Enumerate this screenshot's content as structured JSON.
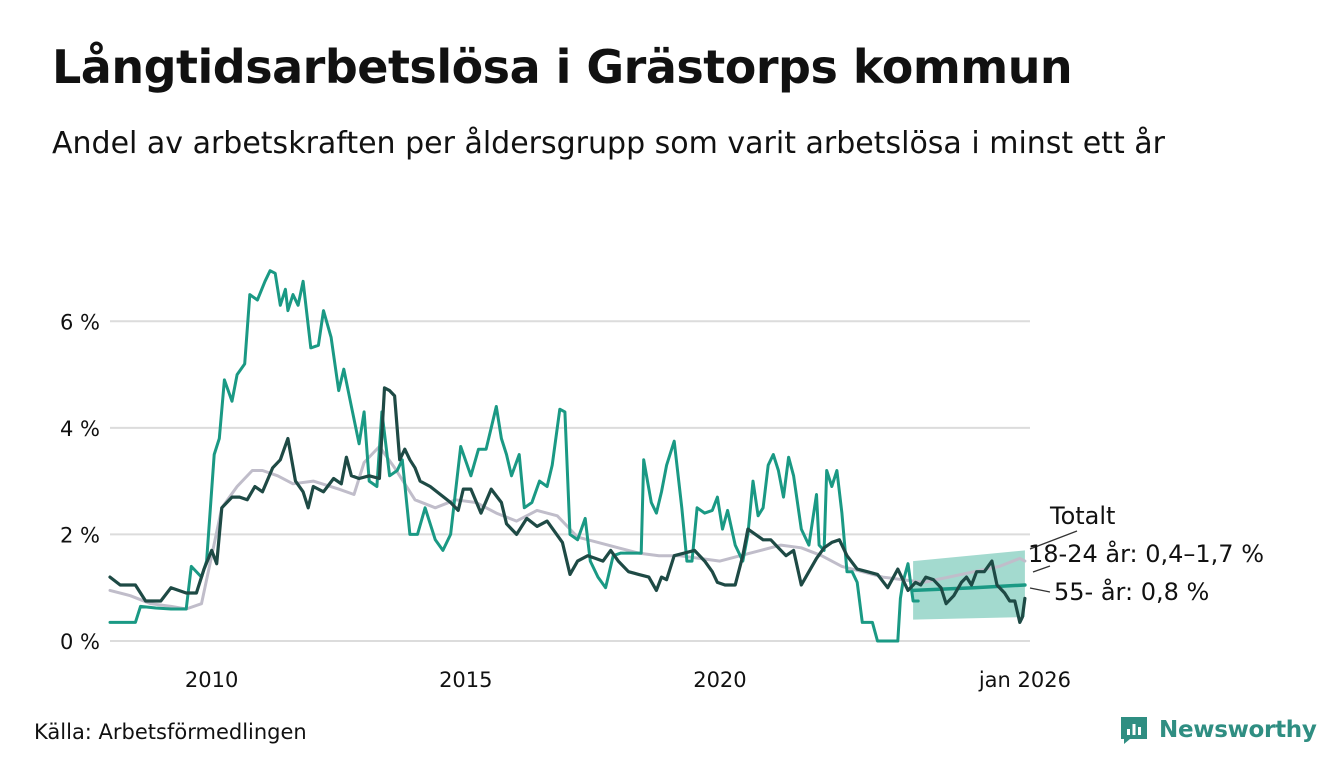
{
  "title": "Långtidsarbetslösa i Grästorps kommun",
  "subtitle": "Andel av arbetskraften per åldersgrupp som varit arbetslösa i minst ett år",
  "source": "Källa: Arbetsförmedlingen",
  "brand": "Newsworthy",
  "colors": {
    "youth": "#1a9984",
    "senior": "#1e4a45",
    "total": "#c0bdca",
    "band": "#93d3c7",
    "grid": "#dcdcdc",
    "brand": "#2f8e82"
  },
  "chart_data": {
    "type": "line",
    "xlim": [
      2008,
      2026.1
    ],
    "ylim": [
      0,
      7
    ],
    "y_ticks": [
      0,
      2,
      4,
      6
    ],
    "y_tick_labels": [
      "0 %",
      "2 %",
      "4 %",
      "6 %"
    ],
    "x_ticks": [
      2010,
      2015,
      2020,
      2026
    ],
    "x_tick_labels": [
      "2010",
      "2015",
      "2020",
      "jan 2026"
    ],
    "series": [
      {
        "name": "Totalt",
        "label": "Totalt",
        "color_key": "total",
        "points": [
          [
            2008.0,
            0.95
          ],
          [
            2008.4,
            0.85
          ],
          [
            2008.8,
            0.7
          ],
          [
            2009.2,
            0.65
          ],
          [
            2009.5,
            0.6
          ],
          [
            2009.8,
            0.7
          ],
          [
            2010.0,
            1.6
          ],
          [
            2010.2,
            2.5
          ],
          [
            2010.5,
            2.9
          ],
          [
            2010.8,
            3.2
          ],
          [
            2011.0,
            3.2
          ],
          [
            2011.3,
            3.1
          ],
          [
            2011.6,
            2.95
          ],
          [
            2012.0,
            3.0
          ],
          [
            2012.5,
            2.85
          ],
          [
            2012.8,
            2.75
          ],
          [
            2013.0,
            3.35
          ],
          [
            2013.3,
            3.65
          ],
          [
            2013.6,
            3.25
          ],
          [
            2014.0,
            2.65
          ],
          [
            2014.4,
            2.5
          ],
          [
            2014.8,
            2.65
          ],
          [
            2015.2,
            2.6
          ],
          [
            2015.6,
            2.4
          ],
          [
            2016.0,
            2.25
          ],
          [
            2016.4,
            2.45
          ],
          [
            2016.8,
            2.35
          ],
          [
            2017.2,
            1.95
          ],
          [
            2017.6,
            1.85
          ],
          [
            2018.0,
            1.75
          ],
          [
            2018.4,
            1.65
          ],
          [
            2018.8,
            1.6
          ],
          [
            2019.2,
            1.6
          ],
          [
            2019.6,
            1.55
          ],
          [
            2020.0,
            1.5
          ],
          [
            2020.4,
            1.6
          ],
          [
            2020.8,
            1.7
          ],
          [
            2021.2,
            1.8
          ],
          [
            2021.6,
            1.75
          ],
          [
            2022.0,
            1.6
          ],
          [
            2022.4,
            1.4
          ],
          [
            2022.8,
            1.3
          ],
          [
            2023.2,
            1.2
          ],
          [
            2023.6,
            1.15
          ],
          [
            2024.0,
            1.1
          ],
          [
            2024.5,
            1.2
          ],
          [
            2025.0,
            1.3
          ],
          [
            2025.5,
            1.4
          ],
          [
            2025.9,
            1.55
          ],
          [
            2026.0,
            1.5
          ]
        ]
      },
      {
        "name": "18-24 år",
        "label": "18-24 år: 0,4–1,7 %",
        "color_key": "youth",
        "points": [
          [
            2008.0,
            0.35
          ],
          [
            2008.3,
            0.35
          ],
          [
            2008.5,
            0.35
          ],
          [
            2008.6,
            0.65
          ],
          [
            2008.9,
            0.62
          ],
          [
            2009.2,
            0.6
          ],
          [
            2009.5,
            0.6
          ],
          [
            2009.6,
            1.4
          ],
          [
            2009.8,
            1.2
          ],
          [
            2009.9,
            1.5
          ],
          [
            2010.05,
            3.5
          ],
          [
            2010.15,
            3.8
          ],
          [
            2010.25,
            4.9
          ],
          [
            2010.4,
            4.5
          ],
          [
            2010.5,
            5.0
          ],
          [
            2010.65,
            5.2
          ],
          [
            2010.75,
            6.5
          ],
          [
            2010.9,
            6.4
          ],
          [
            2011.05,
            6.75
          ],
          [
            2011.15,
            6.95
          ],
          [
            2011.25,
            6.9
          ],
          [
            2011.35,
            6.3
          ],
          [
            2011.45,
            6.6
          ],
          [
            2011.5,
            6.2
          ],
          [
            2011.6,
            6.5
          ],
          [
            2011.7,
            6.3
          ],
          [
            2011.8,
            6.75
          ],
          [
            2011.95,
            5.5
          ],
          [
            2012.1,
            5.55
          ],
          [
            2012.2,
            6.2
          ],
          [
            2012.35,
            5.7
          ],
          [
            2012.5,
            4.7
          ],
          [
            2012.6,
            5.1
          ],
          [
            2012.75,
            4.4
          ],
          [
            2012.9,
            3.7
          ],
          [
            2013.0,
            4.3
          ],
          [
            2013.1,
            3.0
          ],
          [
            2013.25,
            2.9
          ],
          [
            2013.35,
            4.3
          ],
          [
            2013.5,
            3.1
          ],
          [
            2013.65,
            3.2
          ],
          [
            2013.75,
            3.4
          ],
          [
            2013.9,
            2.0
          ],
          [
            2014.05,
            2.0
          ],
          [
            2014.2,
            2.5
          ],
          [
            2014.4,
            1.9
          ],
          [
            2014.55,
            1.7
          ],
          [
            2014.7,
            2.0
          ],
          [
            2014.9,
            3.65
          ],
          [
            2015.1,
            3.1
          ],
          [
            2015.25,
            3.6
          ],
          [
            2015.4,
            3.6
          ],
          [
            2015.5,
            4.0
          ],
          [
            2015.6,
            4.4
          ],
          [
            2015.7,
            3.8
          ],
          [
            2015.8,
            3.5
          ],
          [
            2015.9,
            3.1
          ],
          [
            2016.05,
            3.5
          ],
          [
            2016.15,
            2.5
          ],
          [
            2016.3,
            2.6
          ],
          [
            2016.45,
            3.0
          ],
          [
            2016.6,
            2.9
          ],
          [
            2016.7,
            3.3
          ],
          [
            2016.85,
            4.35
          ],
          [
            2016.95,
            4.3
          ],
          [
            2017.05,
            2.0
          ],
          [
            2017.2,
            1.9
          ],
          [
            2017.35,
            2.3
          ],
          [
            2017.45,
            1.5
          ],
          [
            2017.6,
            1.2
          ],
          [
            2017.75,
            1.0
          ],
          [
            2017.9,
            1.6
          ],
          [
            2018.05,
            1.65
          ],
          [
            2018.25,
            1.65
          ],
          [
            2018.45,
            1.65
          ],
          [
            2018.5,
            3.4
          ],
          [
            2018.65,
            2.6
          ],
          [
            2018.75,
            2.4
          ],
          [
            2018.85,
            2.8
          ],
          [
            2018.95,
            3.3
          ],
          [
            2019.1,
            3.75
          ],
          [
            2019.25,
            2.5
          ],
          [
            2019.35,
            1.5
          ],
          [
            2019.45,
            1.5
          ],
          [
            2019.55,
            2.5
          ],
          [
            2019.7,
            2.4
          ],
          [
            2019.85,
            2.45
          ],
          [
            2019.95,
            2.7
          ],
          [
            2020.05,
            2.1
          ],
          [
            2020.15,
            2.45
          ],
          [
            2020.3,
            1.8
          ],
          [
            2020.45,
            1.5
          ],
          [
            2020.55,
            2.0
          ],
          [
            2020.65,
            3.0
          ],
          [
            2020.75,
            2.35
          ],
          [
            2020.85,
            2.5
          ],
          [
            2020.95,
            3.3
          ],
          [
            2021.05,
            3.5
          ],
          [
            2021.15,
            3.2
          ],
          [
            2021.25,
            2.7
          ],
          [
            2021.35,
            3.45
          ],
          [
            2021.45,
            3.1
          ],
          [
            2021.6,
            2.1
          ],
          [
            2021.75,
            1.8
          ],
          [
            2021.9,
            2.75
          ],
          [
            2021.95,
            1.8
          ],
          [
            2022.05,
            1.7
          ],
          [
            2022.1,
            3.2
          ],
          [
            2022.2,
            2.9
          ],
          [
            2022.3,
            3.2
          ],
          [
            2022.4,
            2.4
          ],
          [
            2022.5,
            1.3
          ],
          [
            2022.6,
            1.3
          ],
          [
            2022.7,
            1.1
          ],
          [
            2022.8,
            0.35
          ],
          [
            2022.9,
            0.35
          ],
          [
            2023.0,
            0.35
          ],
          [
            2023.1,
            0.0
          ],
          [
            2023.3,
            0.0
          ],
          [
            2023.5,
            0.0
          ],
          [
            2023.55,
            0.8
          ],
          [
            2023.6,
            1.1
          ],
          [
            2023.7,
            1.45
          ],
          [
            2023.8,
            0.75
          ],
          [
            2023.9,
            0.75
          ]
        ]
      },
      {
        "name": "55- år",
        "label": "55- år: 0,8 %",
        "color_key": "senior",
        "points": [
          [
            2008.0,
            1.2
          ],
          [
            2008.2,
            1.05
          ],
          [
            2008.5,
            1.05
          ],
          [
            2008.7,
            0.75
          ],
          [
            2009.0,
            0.75
          ],
          [
            2009.2,
            1.0
          ],
          [
            2009.5,
            0.9
          ],
          [
            2009.7,
            0.9
          ],
          [
            2009.85,
            1.35
          ],
          [
            2010.0,
            1.7
          ],
          [
            2010.1,
            1.45
          ],
          [
            2010.2,
            2.5
          ],
          [
            2010.4,
            2.7
          ],
          [
            2010.55,
            2.7
          ],
          [
            2010.7,
            2.65
          ],
          [
            2010.85,
            2.9
          ],
          [
            2011.0,
            2.8
          ],
          [
            2011.2,
            3.25
          ],
          [
            2011.35,
            3.4
          ],
          [
            2011.5,
            3.8
          ],
          [
            2011.65,
            3.0
          ],
          [
            2011.8,
            2.8
          ],
          [
            2011.9,
            2.5
          ],
          [
            2012.0,
            2.9
          ],
          [
            2012.2,
            2.8
          ],
          [
            2012.4,
            3.05
          ],
          [
            2012.55,
            2.95
          ],
          [
            2012.65,
            3.45
          ],
          [
            2012.75,
            3.1
          ],
          [
            2012.9,
            3.05
          ],
          [
            2013.1,
            3.1
          ],
          [
            2013.3,
            3.05
          ],
          [
            2013.4,
            4.75
          ],
          [
            2013.5,
            4.7
          ],
          [
            2013.6,
            4.6
          ],
          [
            2013.7,
            3.4
          ],
          [
            2013.8,
            3.6
          ],
          [
            2013.9,
            3.4
          ],
          [
            2014.0,
            3.25
          ],
          [
            2014.1,
            3.0
          ],
          [
            2014.3,
            2.9
          ],
          [
            2014.5,
            2.75
          ],
          [
            2014.7,
            2.6
          ],
          [
            2014.85,
            2.45
          ],
          [
            2014.95,
            2.85
          ],
          [
            2015.1,
            2.85
          ],
          [
            2015.3,
            2.4
          ],
          [
            2015.5,
            2.85
          ],
          [
            2015.7,
            2.6
          ],
          [
            2015.8,
            2.2
          ],
          [
            2016.0,
            2.0
          ],
          [
            2016.2,
            2.3
          ],
          [
            2016.4,
            2.15
          ],
          [
            2016.6,
            2.25
          ],
          [
            2016.75,
            2.05
          ],
          [
            2016.9,
            1.85
          ],
          [
            2017.05,
            1.25
          ],
          [
            2017.2,
            1.5
          ],
          [
            2017.4,
            1.6
          ],
          [
            2017.55,
            1.55
          ],
          [
            2017.7,
            1.5
          ],
          [
            2017.85,
            1.7
          ],
          [
            2018.0,
            1.5
          ],
          [
            2018.2,
            1.3
          ],
          [
            2018.4,
            1.25
          ],
          [
            2018.6,
            1.2
          ],
          [
            2018.75,
            0.95
          ],
          [
            2018.85,
            1.2
          ],
          [
            2018.95,
            1.15
          ],
          [
            2019.1,
            1.6
          ],
          [
            2019.3,
            1.65
          ],
          [
            2019.5,
            1.7
          ],
          [
            2019.7,
            1.5
          ],
          [
            2019.85,
            1.3
          ],
          [
            2019.95,
            1.1
          ],
          [
            2020.1,
            1.05
          ],
          [
            2020.3,
            1.05
          ],
          [
            2020.45,
            1.6
          ],
          [
            2020.55,
            2.1
          ],
          [
            2020.7,
            2.0
          ],
          [
            2020.85,
            1.9
          ],
          [
            2021.0,
            1.9
          ],
          [
            2021.15,
            1.75
          ],
          [
            2021.3,
            1.6
          ],
          [
            2021.45,
            1.7
          ],
          [
            2021.6,
            1.05
          ],
          [
            2021.75,
            1.3
          ],
          [
            2021.9,
            1.55
          ],
          [
            2022.05,
            1.75
          ],
          [
            2022.2,
            1.85
          ],
          [
            2022.35,
            1.9
          ],
          [
            2022.5,
            1.6
          ],
          [
            2022.7,
            1.35
          ],
          [
            2022.9,
            1.3
          ],
          [
            2023.1,
            1.25
          ],
          [
            2023.3,
            1.0
          ],
          [
            2023.5,
            1.35
          ],
          [
            2023.7,
            0.95
          ],
          [
            2023.85,
            1.1
          ],
          [
            2023.95,
            1.05
          ],
          [
            2024.05,
            1.2
          ],
          [
            2024.2,
            1.15
          ],
          [
            2024.35,
            1.0
          ],
          [
            2024.45,
            0.7
          ],
          [
            2024.6,
            0.85
          ],
          [
            2024.75,
            1.1
          ],
          [
            2024.85,
            1.2
          ],
          [
            2024.95,
            1.05
          ],
          [
            2025.05,
            1.3
          ],
          [
            2025.2,
            1.3
          ],
          [
            2025.35,
            1.5
          ],
          [
            2025.45,
            1.05
          ],
          [
            2025.6,
            0.9
          ],
          [
            2025.7,
            0.75
          ],
          [
            2025.8,
            0.75
          ],
          [
            2025.9,
            0.35
          ],
          [
            2025.95,
            0.45
          ],
          [
            2026.0,
            0.8
          ]
        ]
      }
    ],
    "trend": {
      "name": "18-24 år trend",
      "color_key": "youth",
      "points": [
        [
          2023.8,
          0.95
        ],
        [
          2025.0,
          1.0
        ],
        [
          2026.0,
          1.05
        ]
      ]
    },
    "band": {
      "name": "18-24 år intervall",
      "color_key": "band",
      "x_range": [
        2023.8,
        2026.0
      ],
      "upper": [
        [
          2023.8,
          1.5
        ],
        [
          2026.0,
          1.7
        ]
      ],
      "lower": [
        [
          2023.8,
          0.4
        ],
        [
          2026.0,
          0.45
        ]
      ]
    }
  }
}
